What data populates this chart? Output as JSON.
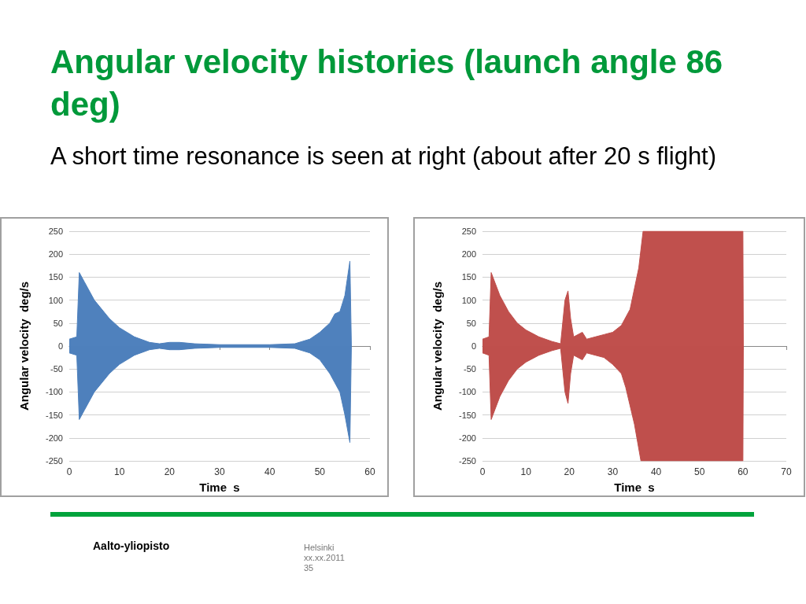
{
  "chart_data": [
    {
      "type": "other",
      "title": "Angular velocity histories (launch angle 86 deg)",
      "subtitle": "A short time resonance is seen at right (about after 20 s flight)",
      "annotations": [
        "Aalto-yliopisto",
        "Helsinki\nxx.xx.2011\n35"
      ]
    },
    {
      "type": "area",
      "xlabel": "Time  s",
      "ylabel": "Angular velocity  deg/s",
      "xlim": [
        0,
        60
      ],
      "xticks": [
        0,
        10,
        20,
        30,
        40,
        50,
        60
      ],
      "ylim": [
        -250,
        250
      ],
      "yticks": [
        -250,
        -200,
        -150,
        -100,
        -50,
        0,
        50,
        100,
        150,
        200,
        250
      ],
      "grid": "y",
      "series": [
        {
          "color": "#4f81bd",
          "x": [
            0,
            1.5,
            2,
            3,
            5,
            8,
            10,
            13,
            16,
            18,
            20,
            22,
            25,
            30,
            40,
            45,
            48,
            50,
            52,
            53,
            54,
            55,
            56,
            56.3
          ],
          "values": [
            15,
            20,
            160,
            140,
            100,
            60,
            40,
            20,
            8,
            5,
            8,
            8,
            5,
            3,
            3,
            5,
            15,
            30,
            50,
            70,
            75,
            110,
            185,
            0
          ]
        },
        {
          "color": "#4e80bc",
          "x": [
            0,
            1.5,
            2,
            3,
            5,
            8,
            10,
            13,
            16,
            18,
            20,
            22,
            25,
            30,
            40,
            45,
            48,
            50,
            52,
            53,
            54,
            55,
            56,
            56.3
          ],
          "values": [
            -15,
            -20,
            -160,
            -140,
            -100,
            -60,
            -40,
            -20,
            -8,
            -5,
            -8,
            -8,
            -5,
            -3,
            -3,
            -5,
            -15,
            -30,
            -60,
            -80,
            -100,
            -150,
            -210,
            0
          ]
        }
      ]
    },
    {
      "type": "area",
      "xlabel": "Time  s",
      "ylabel": "Angular velocity  deg/s",
      "xlim": [
        0,
        70
      ],
      "xticks": [
        0,
        10,
        20,
        30,
        40,
        50,
        60,
        70
      ],
      "ylim": [
        -250,
        250
      ],
      "yticks": [
        -250,
        -200,
        -150,
        -100,
        -50,
        0,
        50,
        100,
        150,
        200,
        250
      ],
      "grid": "y",
      "series": [
        {
          "color": "#c0504d",
          "x": [
            0,
            1.5,
            2,
            4,
            6,
            8,
            10,
            13,
            16,
            18,
            19,
            19.7,
            20.3,
            21,
            23,
            24,
            26,
            28,
            30,
            32,
            34,
            36,
            37,
            60,
            60.1
          ],
          "values": [
            15,
            20,
            160,
            110,
            75,
            50,
            35,
            20,
            10,
            5,
            100,
            120,
            60,
            20,
            30,
            15,
            20,
            25,
            30,
            45,
            80,
            170,
            250,
            250,
            0
          ]
        },
        {
          "color": "#bf4f4c",
          "x": [
            0,
            1.5,
            2,
            4,
            6,
            8,
            10,
            13,
            16,
            18,
            19,
            19.7,
            20.3,
            21,
            23,
            24,
            26,
            28,
            30,
            32,
            33,
            35,
            36.5,
            60,
            60.1
          ],
          "values": [
            -15,
            -20,
            -160,
            -110,
            -75,
            -50,
            -35,
            -20,
            -10,
            -5,
            -100,
            -125,
            -60,
            -20,
            -30,
            -15,
            -20,
            -25,
            -40,
            -60,
            -90,
            -170,
            -250,
            -250,
            0
          ]
        }
      ]
    }
  ]
}
